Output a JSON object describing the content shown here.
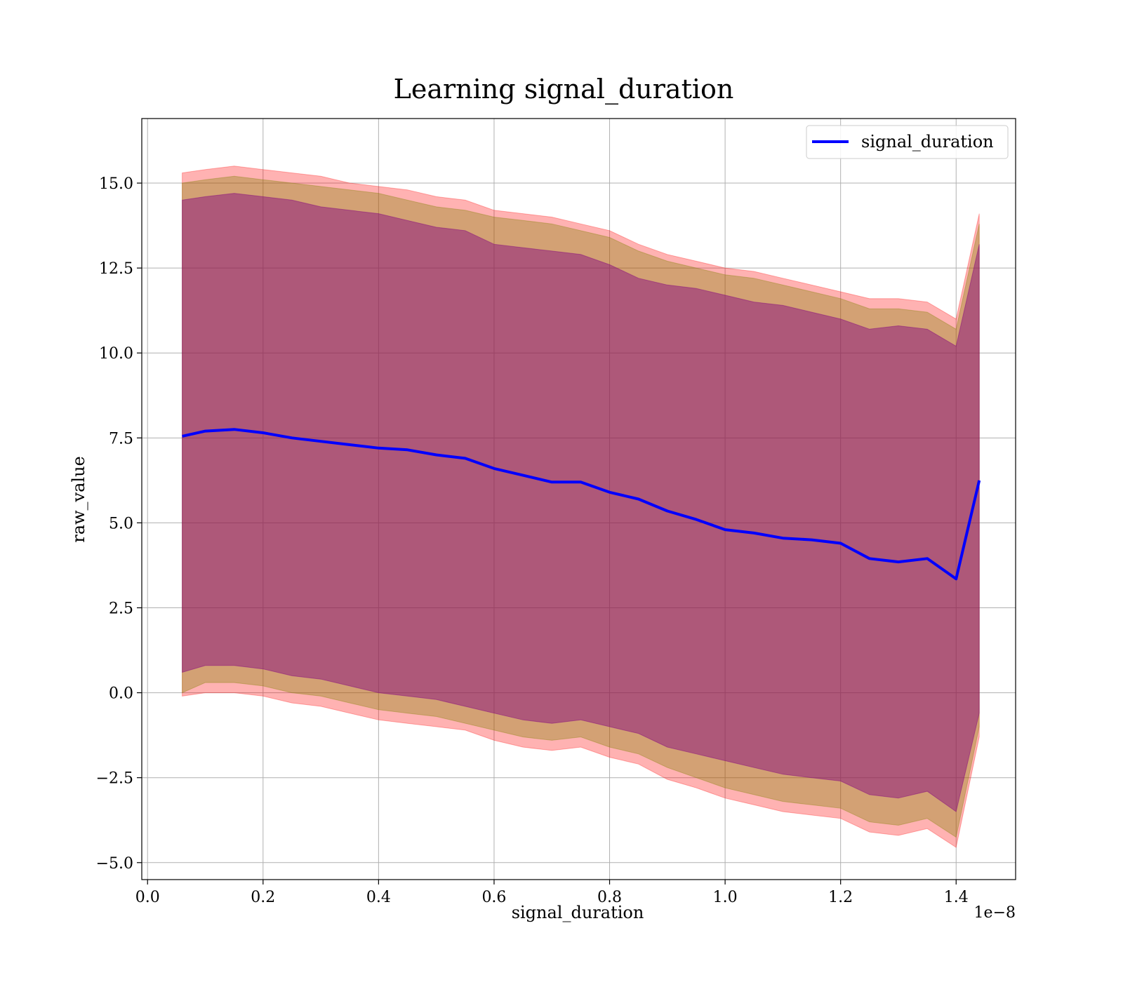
{
  "chart_data": {
    "type": "line",
    "title": "Learning signal_duration",
    "xlabel": "signal_duration",
    "ylabel": "raw_value",
    "x_offset_label": "1e−8",
    "x_scale": 1e-08,
    "xlim": [
      -0.01,
      1.503
    ],
    "ylim": [
      -5.5,
      16.9
    ],
    "grid": true,
    "legend_position": "upper right",
    "x_ticks": [
      0.0,
      0.2,
      0.4,
      0.6,
      0.8,
      1.0,
      1.2,
      1.4
    ],
    "x_tick_labels": [
      "0.0",
      "0.2",
      "0.4",
      "0.6",
      "0.8",
      "1.0",
      "1.2",
      "1.4"
    ],
    "y_ticks": [
      -5.0,
      -2.5,
      0.0,
      2.5,
      5.0,
      7.5,
      10.0,
      12.5,
      15.0
    ],
    "y_tick_labels": [
      "−5.0",
      "−2.5",
      "0.0",
      "2.5",
      "5.0",
      "7.5",
      "10.0",
      "12.5",
      "15.0"
    ],
    "x": [
      0.06,
      0.1,
      0.15,
      0.2,
      0.25,
      0.3,
      0.35,
      0.4,
      0.45,
      0.5,
      0.55,
      0.6,
      0.65,
      0.7,
      0.75,
      0.8,
      0.85,
      0.9,
      0.95,
      1.0,
      1.05,
      1.1,
      1.15,
      1.2,
      1.25,
      1.3,
      1.35,
      1.4,
      1.44
    ],
    "series": [
      {
        "name": "signal_duration",
        "color": "#0000ff",
        "values": [
          7.55,
          7.7,
          7.75,
          7.65,
          7.5,
          7.4,
          7.3,
          7.2,
          7.15,
          7.0,
          6.9,
          6.6,
          6.4,
          6.2,
          6.2,
          5.9,
          5.7,
          5.35,
          5.1,
          4.8,
          4.7,
          4.55,
          4.5,
          4.4,
          3.95,
          3.85,
          3.95,
          3.35,
          6.25
        ]
      }
    ],
    "bands": [
      {
        "color": "#ff0000",
        "opacity": 0.3,
        "lower": [
          -0.1,
          0.0,
          0.0,
          -0.1,
          -0.3,
          -0.4,
          -0.6,
          -0.8,
          -0.9,
          -1.0,
          -1.1,
          -1.4,
          -1.6,
          -1.7,
          -1.6,
          -1.9,
          -2.1,
          -2.55,
          -2.8,
          -3.1,
          -3.3,
          -3.5,
          -3.6,
          -3.7,
          -4.1,
          -4.2,
          -4.0,
          -4.55,
          -1.3
        ],
        "upper": [
          15.3,
          15.4,
          15.5,
          15.4,
          15.3,
          15.2,
          15.0,
          14.9,
          14.8,
          14.6,
          14.5,
          14.2,
          14.1,
          14.0,
          13.8,
          13.6,
          13.2,
          12.9,
          12.7,
          12.5,
          12.4,
          12.2,
          12.0,
          11.8,
          11.6,
          11.6,
          11.5,
          11.0,
          14.1
        ]
      },
      {
        "color": "#808000",
        "opacity": 0.35,
        "lower": [
          0.0,
          0.3,
          0.3,
          0.2,
          0.0,
          -0.1,
          -0.3,
          -0.5,
          -0.6,
          -0.7,
          -0.9,
          -1.1,
          -1.3,
          -1.4,
          -1.3,
          -1.6,
          -1.8,
          -2.2,
          -2.5,
          -2.8,
          -3.0,
          -3.2,
          -3.3,
          -3.4,
          -3.8,
          -3.9,
          -3.7,
          -4.25,
          -1.0
        ],
        "upper": [
          15.0,
          15.1,
          15.2,
          15.1,
          15.0,
          14.9,
          14.8,
          14.7,
          14.5,
          14.3,
          14.2,
          14.0,
          13.9,
          13.8,
          13.6,
          13.4,
          13.0,
          12.7,
          12.5,
          12.3,
          12.2,
          12.0,
          11.8,
          11.6,
          11.3,
          11.3,
          11.2,
          10.7,
          13.8
        ]
      },
      {
        "color": "#800080",
        "opacity": 0.45,
        "lower": [
          0.6,
          0.8,
          0.8,
          0.7,
          0.5,
          0.4,
          0.2,
          0.0,
          -0.1,
          -0.2,
          -0.4,
          -0.6,
          -0.8,
          -0.9,
          -0.8,
          -1.0,
          -1.2,
          -1.6,
          -1.8,
          -2.0,
          -2.2,
          -2.4,
          -2.5,
          -2.6,
          -3.0,
          -3.1,
          -2.9,
          -3.5,
          -0.6
        ],
        "upper": [
          14.5,
          14.6,
          14.7,
          14.6,
          14.5,
          14.3,
          14.2,
          14.1,
          13.9,
          13.7,
          13.6,
          13.2,
          13.1,
          13.0,
          12.9,
          12.6,
          12.2,
          12.0,
          11.9,
          11.7,
          11.5,
          11.4,
          11.2,
          11.0,
          10.7,
          10.8,
          10.7,
          10.2,
          13.2
        ]
      }
    ]
  }
}
